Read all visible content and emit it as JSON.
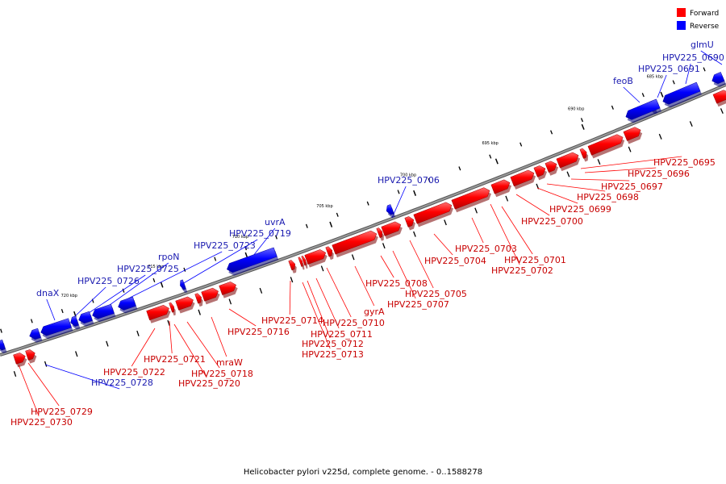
{
  "caption": "Helicobacter pylori v225d, complete genome. - 0..1588278",
  "legend": [
    {
      "label": "Forward",
      "color": "#ff0000"
    },
    {
      "label": "Reverse",
      "color": "#0000ff"
    }
  ],
  "ticks": [
    "685 kbp",
    "690 kbp",
    "695 kbp",
    "700 kbp",
    "705 kbp",
    "710 kbp",
    "715 kbp",
    "720 kbp"
  ],
  "reverse_labels": [
    "glmU",
    "HPV225_0690",
    "HPV225_0691",
    "feoB",
    "HPV225_0706",
    "uvrA",
    "HPV225_0719",
    "HPV225_0723",
    "rpoN",
    "HPV225_0725",
    "HPV225_0726",
    "dnaX",
    "HPV225_0728"
  ],
  "forward_labels": [
    "HPV225_0695",
    "HPV225_0696",
    "HPV225_0697",
    "HPV225_0698",
    "HPV225_0699",
    "HPV225_0700",
    "HPV225_0701",
    "HPV225_0702",
    "HPV225_0703",
    "HPV225_0704",
    "HPV225_0705",
    "HPV225_0707",
    "HPV225_0708",
    "gyrA",
    "HPV225_0710",
    "HPV225_0711",
    "HPV225_0712",
    "HPV225_0713",
    "HPV225_0714",
    "HPV225_0716",
    "mraW",
    "HPV225_0718",
    "HPV225_0720",
    "HPV225_0721",
    "HPV225_0722",
    "HPV225_0729",
    "HPV225_0730"
  ]
}
